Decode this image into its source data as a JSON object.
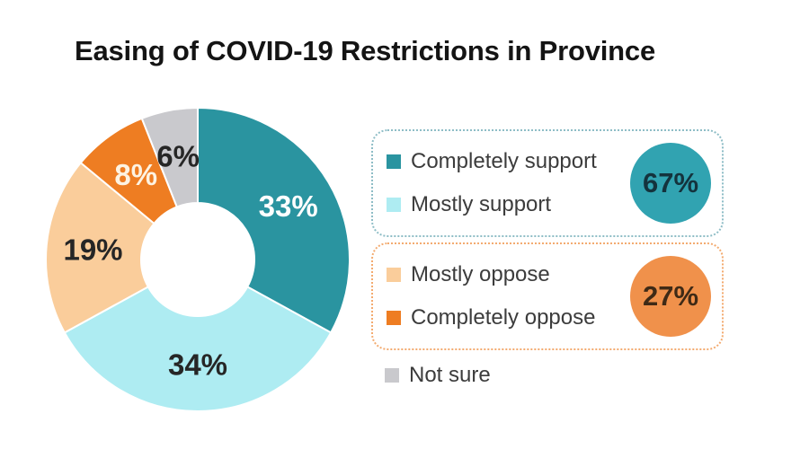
{
  "title": "Easing of COVID-19 Restrictions in Province",
  "chart_data": {
    "type": "pie",
    "subtype": "donut",
    "title": "Easing of COVID-19 Restrictions in Province",
    "start_angle_deg": 0,
    "direction": "clockwise",
    "categories": [
      "Completely support",
      "Mostly support",
      "Mostly oppose",
      "Completely oppose",
      "Not sure"
    ],
    "values": [
      33,
      34,
      19,
      8,
      6
    ],
    "labels": [
      "33%",
      "34%",
      "19%",
      "8%",
      "6%"
    ],
    "colors": [
      "#2a94a0",
      "#aeecf2",
      "#facd9b",
      "#ee7d22",
      "#c9c9cd"
    ],
    "label_colors": [
      "#ffffff",
      "#262626",
      "#262626",
      "#fdf3e2",
      "#262626"
    ],
    "legend_position": "right"
  },
  "legend": {
    "support_group": {
      "items": [
        {
          "label": "Completely support",
          "color": "#2a94a0"
        },
        {
          "label": "Mostly support",
          "color": "#aeecf2"
        }
      ],
      "total_label": "67%",
      "badge_color": "#31a3b1",
      "text_color": "#14333d",
      "border_color": "#8ebdc6"
    },
    "oppose_group": {
      "items": [
        {
          "label": "Mostly oppose",
          "color": "#facd9b"
        },
        {
          "label": "Completely oppose",
          "color": "#ee7d22"
        }
      ],
      "total_label": "27%",
      "badge_color": "#f0914b",
      "text_color": "#3f2a16",
      "border_color": "#f3ab70"
    },
    "not_sure": {
      "label": "Not sure",
      "color": "#c9c9cd"
    }
  }
}
